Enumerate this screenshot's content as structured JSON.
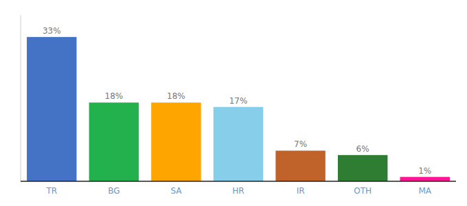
{
  "chart_data": {
    "type": "bar",
    "categories": [
      "TR",
      "BG",
      "SA",
      "HR",
      "IR",
      "OTH",
      "MA"
    ],
    "values": [
      33,
      18,
      18,
      17,
      7,
      6,
      1
    ],
    "value_labels": [
      "33%",
      "18%",
      "18%",
      "17%",
      "7%",
      "6%",
      "1%"
    ],
    "colors": [
      "#4472c4",
      "#22b14c",
      "#ffa500",
      "#87ceeb",
      "#c0632a",
      "#2e7d32",
      "#ff1493"
    ],
    "ylim": [
      0,
      38
    ],
    "grid": false,
    "data_labels": true,
    "tick_labels": "x"
  }
}
